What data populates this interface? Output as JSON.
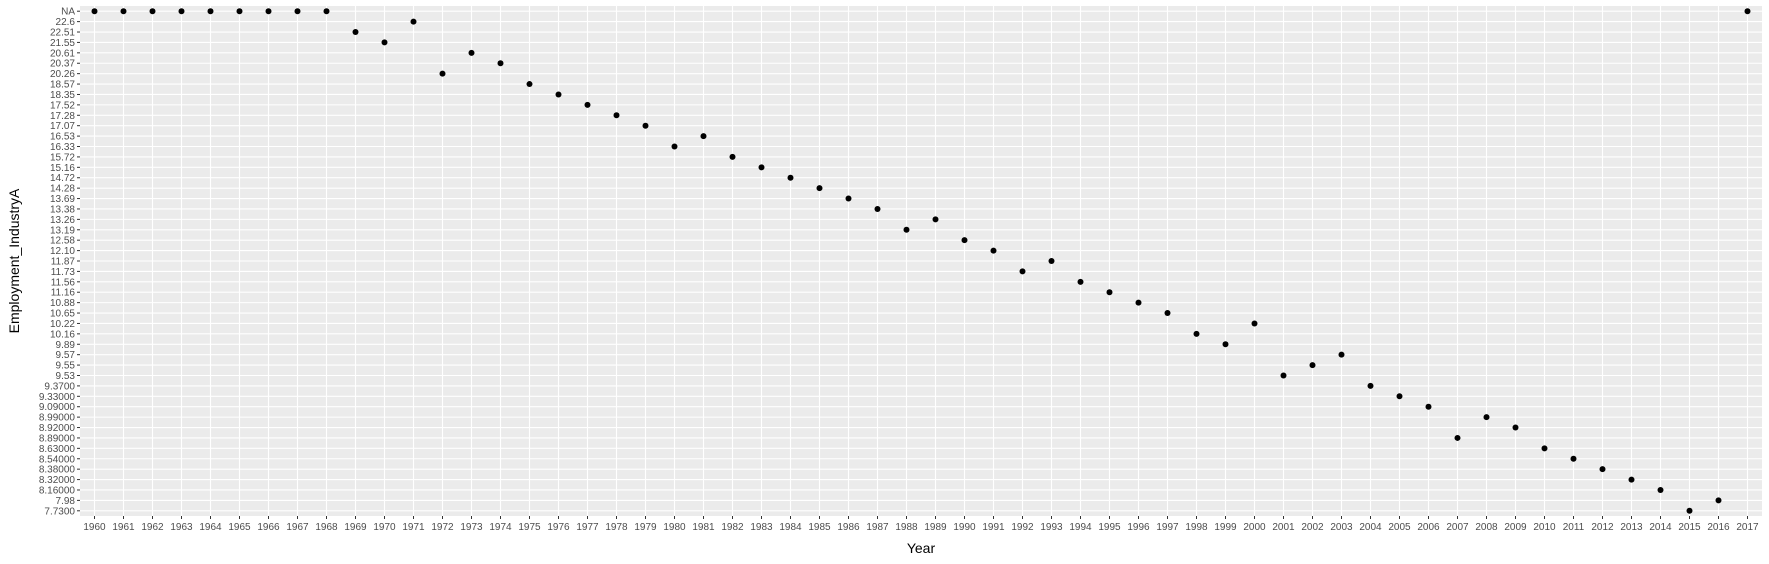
{
  "chart_data": {
    "type": "scatter",
    "title": "",
    "xlabel": "Year",
    "ylabel": "Employment_IndustryA",
    "y_axis_kind": "categorical",
    "y_categories": [
      "7.7300",
      "7.98",
      "8.16000",
      "8.32000",
      "8.38000",
      "8.54000",
      "8.63000",
      "8.89000",
      "8.92000",
      "8.99000",
      "9.09000",
      "9.33000",
      "9.3700",
      "9.53",
      "9.55",
      "9.57",
      "9.89",
      "10.16",
      "10.22",
      "10.65",
      "10.88",
      "11.16",
      "11.56",
      "11.73",
      "11.87",
      "12.10",
      "12.58",
      "13.19",
      "13.26",
      "13.38",
      "13.69",
      "14.28",
      "14.72",
      "15.16",
      "15.72",
      "16.33",
      "16.53",
      "17.07",
      "17.28",
      "17.52",
      "18.35",
      "18.57",
      "20.26",
      "20.37",
      "20.61",
      "21.55",
      "22.51",
      "22.6",
      "NA"
    ],
    "x": [
      "1960",
      "1961",
      "1962",
      "1963",
      "1964",
      "1965",
      "1966",
      "1967",
      "1968",
      "1969",
      "1970",
      "1971",
      "1972",
      "1973",
      "1974",
      "1975",
      "1976",
      "1977",
      "1978",
      "1979",
      "1980",
      "1981",
      "1982",
      "1983",
      "1984",
      "1985",
      "1986",
      "1987",
      "1988",
      "1989",
      "1990",
      "1991",
      "1992",
      "1993",
      "1994",
      "1995",
      "1996",
      "1997",
      "1998",
      "1999",
      "2000",
      "2001",
      "2002",
      "2003",
      "2004",
      "2005",
      "2006",
      "2007",
      "2008",
      "2009",
      "2010",
      "2011",
      "2012",
      "2013",
      "2014",
      "2015",
      "2016",
      "2017"
    ],
    "y": [
      "NA",
      "NA",
      "NA",
      "NA",
      "NA",
      "NA",
      "NA",
      "NA",
      "NA",
      "22.51",
      "21.55",
      "22.6",
      "20.26",
      "20.61",
      "20.37",
      "18.57",
      "18.35",
      "17.52",
      "17.28",
      "17.07",
      "16.33",
      "16.53",
      "15.72",
      "15.16",
      "14.72",
      "14.28",
      "13.69",
      "13.38",
      "13.19",
      "13.26",
      "12.58",
      "12.10",
      "11.73",
      "11.87",
      "11.56",
      "11.16",
      "10.88",
      "10.65",
      "10.16",
      "9.89",
      "10.22",
      "9.53",
      "9.55",
      "9.57",
      "9.3700",
      "9.33000",
      "9.09000",
      "8.89000",
      "8.99000",
      "8.92000",
      "8.63000",
      "8.54000",
      "8.38000",
      "8.32000",
      "8.16000",
      "7.7300",
      "7.98",
      "NA"
    ],
    "grid": true,
    "legend": "none",
    "colors": {
      "panel_background": "#ebebeb",
      "grid_major": "#ffffff",
      "point": "#000000",
      "tick_text": "#4d4d4d",
      "tick_mark": "#333333",
      "title_text": "#000000"
    }
  }
}
